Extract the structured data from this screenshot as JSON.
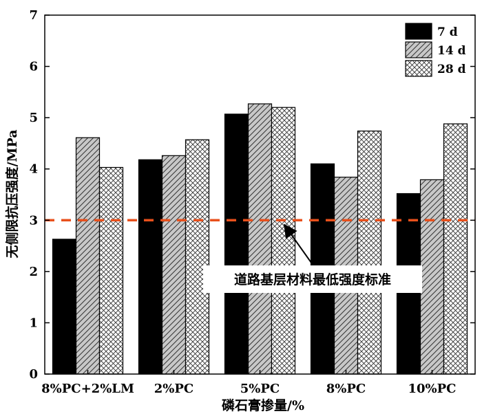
{
  "chart_data": {
    "type": "bar",
    "xlabel": "磷石膏掺量/%",
    "ylabel": "无侧限抗压强度/MPa",
    "ylim": [
      0,
      7
    ],
    "yticks": [
      0,
      1,
      2,
      3,
      4,
      5,
      6,
      7
    ],
    "categories": [
      "8%PC+2%LM",
      "2%PC",
      "5%PC",
      "8%PC",
      "10%PC"
    ],
    "series": [
      {
        "name": "7 d",
        "fill": "solid",
        "values": [
          2.63,
          4.18,
          5.07,
          4.1,
          3.52
        ]
      },
      {
        "name": "14 d",
        "fill": "hatch",
        "values": [
          4.61,
          4.26,
          5.27,
          3.84,
          3.79
        ]
      },
      {
        "name": "28 d",
        "fill": "crosshatch",
        "values": [
          4.03,
          4.57,
          5.2,
          4.74,
          4.88
        ]
      }
    ],
    "reference_line": {
      "value": 3.0,
      "color": "#e8501c",
      "style": "dashed"
    },
    "annotation": {
      "text": "道路基层材料最低强度标准"
    },
    "legend_position": "top-right",
    "grid": false
  }
}
